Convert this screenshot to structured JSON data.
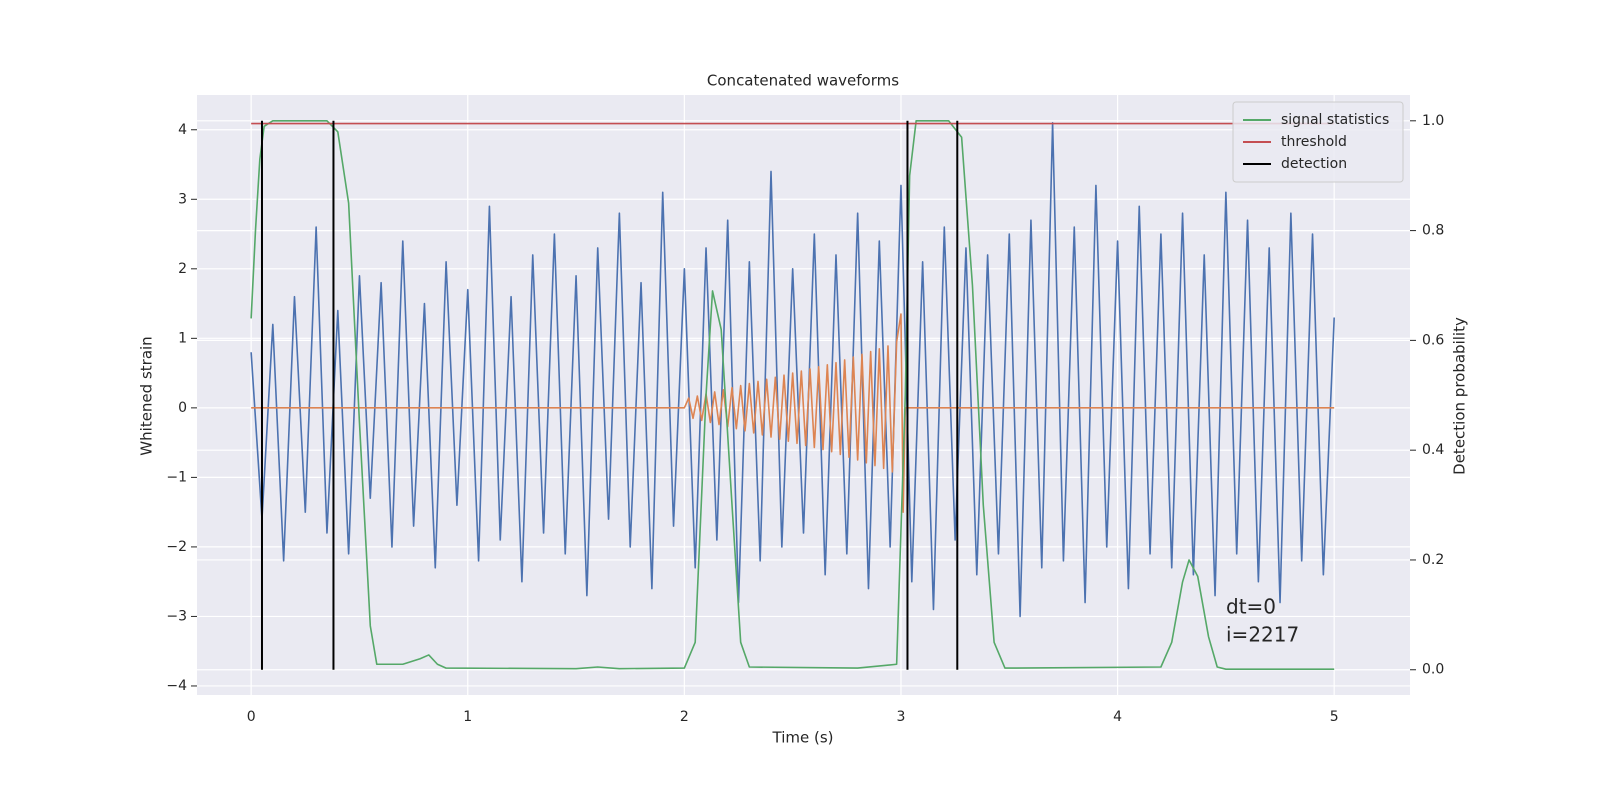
{
  "chart_data": {
    "type": "line",
    "title": "Concatenated waveforms",
    "xlabel": "Time (s)",
    "ylabel": "Whitened strain",
    "y2label": "Detection probability",
    "xlim": [
      -0.25,
      5.35
    ],
    "xticks": [
      0,
      1,
      2,
      3,
      4,
      5
    ],
    "ylim": [
      -4.13,
      4.5
    ],
    "yticks": [
      {
        "value": -4,
        "label": "−4"
      },
      {
        "value": -3,
        "label": "−3"
      },
      {
        "value": -2,
        "label": "−2"
      },
      {
        "value": -1,
        "label": "−1"
      },
      0,
      1,
      2,
      3,
      4
    ],
    "y2lim": [
      -0.046,
      1.047
    ],
    "y2ticks": [
      {
        "value": 0,
        "label": "0.0"
      },
      0.2,
      0.4,
      0.6,
      0.8,
      {
        "value": 1,
        "label": "1.0"
      }
    ],
    "grid": true,
    "legend": "upper right",
    "series": [
      {
        "color": "#4c72b0",
        "x": [
          0,
          0.05,
          0.1,
          0.15,
          0.2,
          0.25,
          0.3,
          0.35,
          0.4,
          0.45,
          0.5,
          0.55,
          0.6,
          0.65,
          0.7,
          0.75,
          0.8,
          0.85,
          0.9,
          0.95,
          1.0,
          1.05,
          1.1,
          1.15,
          1.2,
          1.25,
          1.3,
          1.35,
          1.4,
          1.45,
          1.5,
          1.55,
          1.6,
          1.65,
          1.7,
          1.75,
          1.8,
          1.85,
          1.9,
          1.95,
          2.0,
          2.05,
          2.1,
          2.15,
          2.2,
          2.25,
          2.3,
          2.35,
          2.4,
          2.45,
          2.5,
          2.55,
          2.6,
          2.65,
          2.7,
          2.75,
          2.8,
          2.85,
          2.9,
          2.95,
          3.0,
          3.05,
          3.1,
          3.15,
          3.2,
          3.25,
          3.3,
          3.35,
          3.4,
          3.45,
          3.5,
          3.55,
          3.6,
          3.65,
          3.7,
          3.75,
          3.8,
          3.85,
          3.9,
          3.95,
          4.0,
          4.05,
          4.1,
          4.15,
          4.2,
          4.25,
          4.3,
          4.35,
          4.4,
          4.45,
          4.5,
          4.55,
          4.6,
          4.65,
          4.7,
          4.75,
          4.8,
          4.85,
          4.9,
          4.95,
          5.0
        ],
        "values": [
          0.8,
          -1.6,
          1.2,
          -2.2,
          1.6,
          -1.5,
          2.6,
          -1.8,
          1.4,
          -2.1,
          1.9,
          -1.3,
          1.8,
          -2.0,
          2.4,
          -1.7,
          1.5,
          -2.3,
          2.1,
          -1.4,
          1.7,
          -2.2,
          2.9,
          -1.9,
          1.6,
          -2.5,
          2.2,
          -1.8,
          2.5,
          -2.1,
          1.9,
          -2.7,
          2.3,
          -1.6,
          2.8,
          -2.0,
          1.8,
          -2.6,
          3.1,
          -1.7,
          2.0,
          -2.3,
          2.3,
          -1.9,
          2.7,
          -2.8,
          2.1,
          -2.2,
          3.4,
          -2.0,
          2.0,
          -1.8,
          2.5,
          -2.4,
          2.2,
          -2.1,
          2.8,
          -2.6,
          2.4,
          -2.0,
          3.2,
          -2.5,
          2.1,
          -2.9,
          2.6,
          -1.9,
          2.3,
          -2.4,
          2.2,
          -2.1,
          2.5,
          -3.0,
          2.7,
          -2.3,
          4.1,
          -2.2,
          2.6,
          -2.8,
          3.2,
          -2.0,
          2.4,
          -2.6,
          2.9,
          -2.1,
          2.5,
          -2.3,
          2.8,
          -2.4,
          2.2,
          -2.7,
          3.1,
          -2.1,
          2.7,
          -2.5,
          2.3,
          -2.8,
          2.8,
          -2.2,
          2.5,
          -2.4,
          1.3
        ]
      },
      {
        "color": "#dd8452",
        "x": [
          0,
          2.0,
          2.02,
          2.04,
          2.06,
          2.08,
          2.1,
          2.12,
          2.14,
          2.16,
          2.18,
          2.2,
          2.22,
          2.24,
          2.26,
          2.28,
          2.3,
          2.32,
          2.34,
          2.36,
          2.38,
          2.4,
          2.42,
          2.44,
          2.46,
          2.48,
          2.5,
          2.52,
          2.54,
          2.56,
          2.58,
          2.6,
          2.62,
          2.64,
          2.66,
          2.68,
          2.7,
          2.72,
          2.74,
          2.76,
          2.78,
          2.8,
          2.82,
          2.84,
          2.86,
          2.88,
          2.9,
          2.92,
          2.94,
          2.96,
          2.98,
          3.0,
          3.01,
          3.02,
          5.0
        ],
        "values": [
          0,
          0,
          0.14,
          -0.15,
          0.17,
          -0.18,
          0.2,
          -0.21,
          0.23,
          -0.24,
          0.26,
          -0.27,
          0.29,
          -0.3,
          0.32,
          -0.33,
          0.35,
          -0.36,
          0.38,
          -0.39,
          0.41,
          -0.42,
          0.44,
          -0.45,
          0.47,
          -0.48,
          0.5,
          -0.51,
          0.53,
          -0.54,
          0.56,
          -0.57,
          0.59,
          -0.6,
          0.62,
          -0.63,
          0.65,
          -0.67,
          0.69,
          -0.71,
          0.73,
          -0.75,
          0.77,
          -0.79,
          0.81,
          -0.83,
          0.85,
          -0.87,
          0.89,
          -0.92,
          0.95,
          1.35,
          -1.5,
          0,
          0
        ]
      },
      {
        "name": "signal statistics",
        "color": "#55a868",
        "axis": "y2",
        "x": [
          0,
          0.02,
          0.04,
          0.06,
          0.1,
          0.35,
          0.4,
          0.45,
          0.5,
          0.55,
          0.58,
          0.7,
          0.78,
          0.82,
          0.86,
          0.9,
          1.5,
          1.6,
          1.7,
          2.0,
          2.05,
          2.1,
          2.13,
          2.17,
          2.22,
          2.26,
          2.3,
          2.8,
          2.98,
          3.02,
          3.04,
          3.07,
          3.22,
          3.28,
          3.33,
          3.38,
          3.43,
          3.48,
          4.2,
          4.25,
          4.3,
          4.33,
          4.37,
          4.42,
          4.46,
          4.5,
          5.0
        ],
        "values": [
          0.64,
          0.8,
          0.93,
          0.99,
          1.0,
          1.0,
          0.98,
          0.85,
          0.45,
          0.08,
          0.01,
          0.01,
          0.02,
          0.027,
          0.01,
          0.003,
          0.002,
          0.005,
          0.002,
          0.003,
          0.05,
          0.5,
          0.69,
          0.62,
          0.3,
          0.05,
          0.005,
          0.003,
          0.01,
          0.5,
          0.9,
          1.0,
          1.0,
          0.97,
          0.7,
          0.3,
          0.05,
          0.003,
          0.005,
          0.05,
          0.16,
          0.2,
          0.17,
          0.06,
          0.005,
          0.001,
          0.001
        ]
      },
      {
        "name": "threshold",
        "color": "#c44e52",
        "axis": "y2",
        "x": [
          0,
          5
        ],
        "values": [
          0.995,
          0.995
        ]
      },
      {
        "name": "detection",
        "color": "#000000",
        "axis": "y2",
        "type": "vline",
        "x": [
          0.05,
          0.38,
          3.03,
          3.26
        ]
      }
    ],
    "annotations": [
      "dt=0",
      "i=2217"
    ]
  }
}
